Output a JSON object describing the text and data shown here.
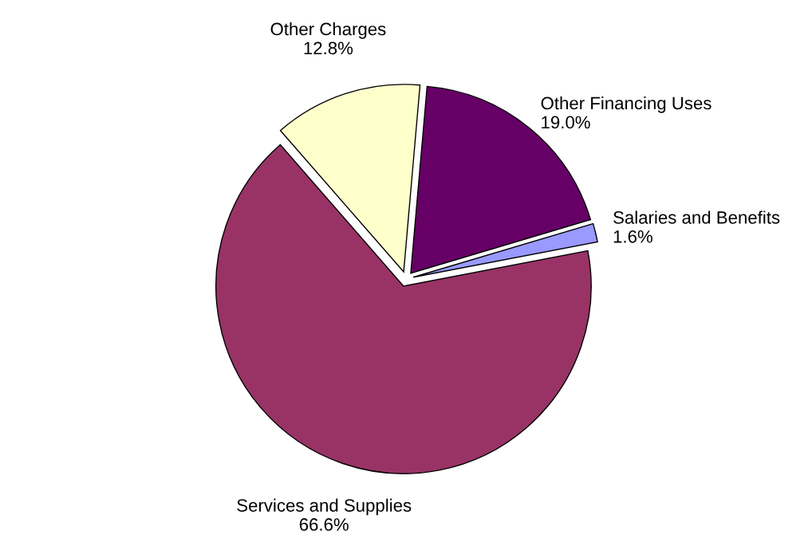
{
  "chart_data": {
    "type": "pie",
    "categories": [
      "Other Financing Uses",
      "Salaries and Benefits",
      "Services and Supplies",
      "Other Charges"
    ],
    "values": [
      19.0,
      1.6,
      66.6,
      12.8
    ],
    "value_labels": [
      "19.0%",
      "1.6%",
      "66.6%",
      "12.8%"
    ],
    "colors": [
      "#660066",
      "#9999ff",
      "#993366",
      "#ffffcc"
    ],
    "legend": false
  }
}
